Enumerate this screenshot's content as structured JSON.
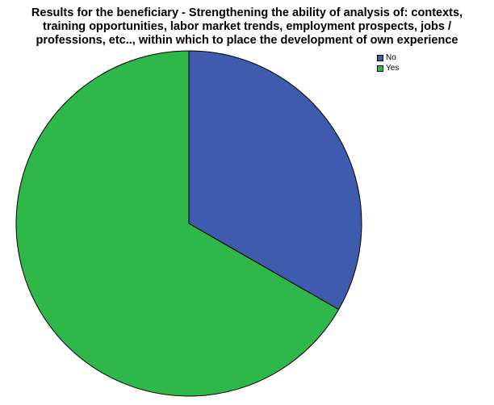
{
  "chart_data": {
    "type": "pie",
    "title": "Results for the beneficiary  - Strengthening the ability of analysis of: contexts, training opportunities, labor market trends, employment prospects, jobs / professions, etc.., within which to place the development of own experience",
    "title_lines": [
      "Results for the beneficiary  - Strengthening the ability of analysis of: contexts,",
      "training opportunities, labor market trends, employment prospects, jobs /",
      "professions, etc.., within which to place the development of own experience"
    ],
    "categories": [
      "No",
      "Yes"
    ],
    "values": [
      33.3,
      66.7
    ],
    "colors": [
      "#3F5BAD",
      "#2EB84A"
    ],
    "start_angle_deg": 0,
    "direction": "clockwise",
    "legend_position": "top-right"
  }
}
